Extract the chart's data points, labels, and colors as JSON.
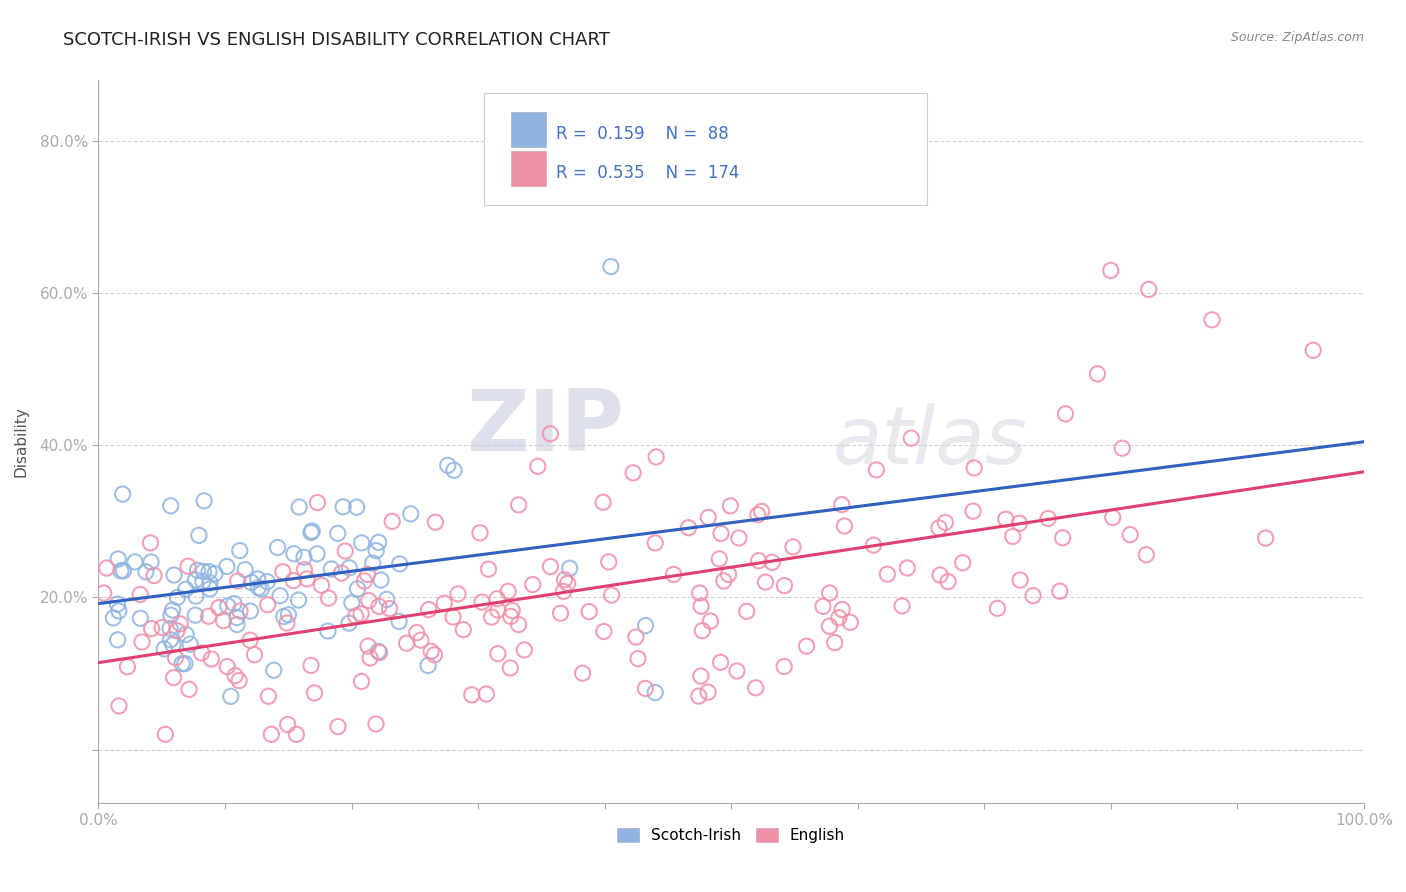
{
  "title": "SCOTCH-IRISH VS ENGLISH DISABILITY CORRELATION CHART",
  "source_text": "Source: ZipAtlas.com",
  "ylabel": "Disability",
  "scotch_irish_R": 0.159,
  "scotch_irish_N": 88,
  "english_R": 0.535,
  "english_N": 174,
  "scotch_irish_color": "#90b4e0",
  "english_color": "#f090a8",
  "scotch_irish_line_color": "#3060c0",
  "english_line_color": "#e04070",
  "title_color": "#222222",
  "legend_text_color": "#4472c4",
  "axis_tick_color": "#4472c4",
  "ylabel_color": "#555555",
  "watermark_color": "#d8d8e8",
  "source_color": "#888888",
  "background_color": "#ffffff",
  "grid_color": "#cccccc",
  "spine_color": "#aaaaaa"
}
